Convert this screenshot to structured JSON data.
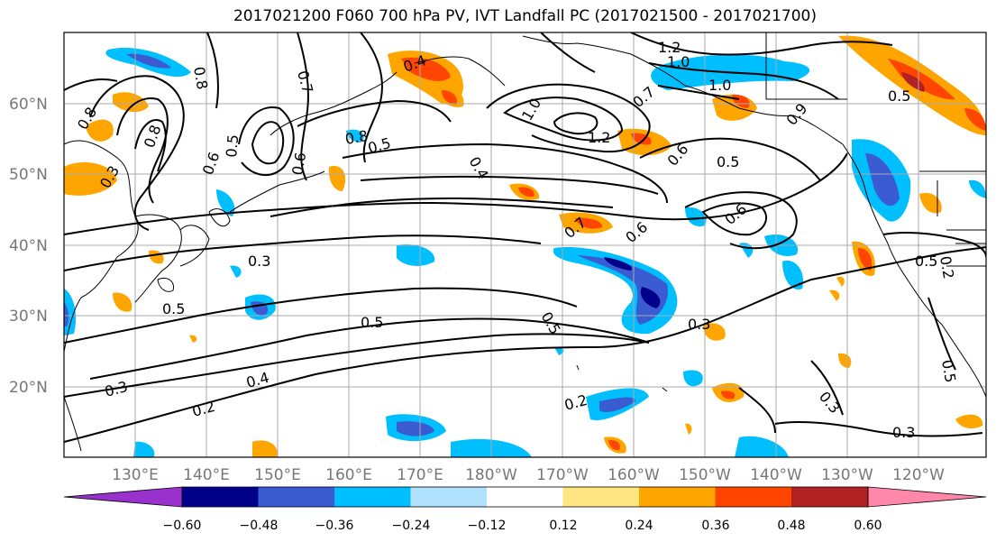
{
  "title": "2017021200 F060 700 hPa PV, IVT Landfall PC (2017021500 - 2017021700)",
  "lat_labels": [
    "60°N",
    "50°N",
    "40°N",
    "30°N",
    "20°N"
  ],
  "lon_labels": [
    "130°E",
    "140°E",
    "150°E",
    "160°E",
    "170°E",
    "180°W",
    "170°W",
    "160°W",
    "150°W",
    "140°W",
    "130°W",
    "120°W"
  ],
  "colorbar": {
    "ticks": [
      "−0.60",
      "−0.48",
      "−0.36",
      "−0.24",
      "−0.12",
      "0.12",
      "0.24",
      "0.36",
      "0.48",
      "0.60"
    ],
    "colors": [
      "#9932cc",
      "#00008b",
      "#3a5bd1",
      "#00bfff",
      "#b0e2ff",
      "#ffffff",
      "#ffe680",
      "#ffa500",
      "#ff4500",
      "#b22222",
      "#ff88aa"
    ]
  },
  "contour_labels": [
    "0.8",
    "0.7",
    "0.4",
    "1.2",
    "1.0",
    "1.0",
    "0.7",
    "1.0",
    "1.2",
    "0.5",
    "0.6",
    "0.8",
    "0.5",
    "0.6",
    "0.6",
    "0.5",
    "0.4",
    "0.6",
    "0.6",
    "0.7",
    "0.5",
    "0.3",
    "0.5",
    "0.5",
    "0.3",
    "0.3",
    "0.4",
    "0.2",
    "0.3",
    "0.2",
    "0.3",
    "0.2",
    "0.5",
    "0.5",
    "0.8",
    "0.8",
    "0.9",
    "0.5",
    "0.3"
  ]
}
